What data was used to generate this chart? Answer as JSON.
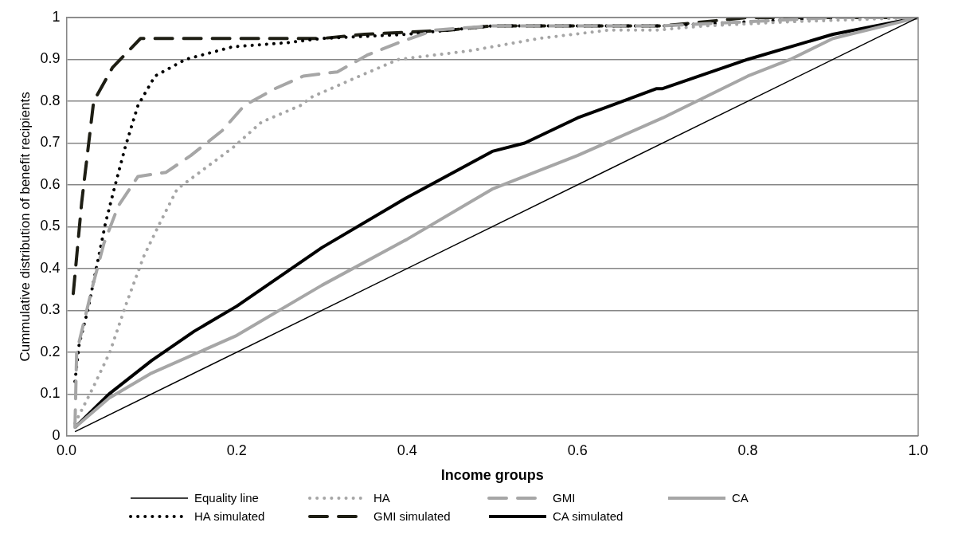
{
  "chart_data": {
    "type": "line",
    "xlabel": "Income groups",
    "ylabel": "Cummulative distribution of benefit recipients",
    "xlim": [
      0,
      1
    ],
    "ylim": [
      0,
      1
    ],
    "xticks": [
      {
        "value": 0,
        "label": "0.0"
      },
      {
        "value": 0.2,
        "label": "0.2"
      },
      {
        "value": 0.4,
        "label": "0.4"
      },
      {
        "value": 0.6,
        "label": "0.6"
      },
      {
        "value": 0.8,
        "label": "0.8"
      },
      {
        "value": 1,
        "label": "1.0"
      }
    ],
    "yticks": [
      0,
      0.1,
      0.2,
      0.3,
      0.4,
      0.5,
      0.6,
      0.7,
      0.8,
      0.9,
      1
    ],
    "grid": "y",
    "legend": "bottom",
    "marker": "none",
    "series": [
      {
        "name": "Equality line",
        "color": "#000000",
        "line_style": "solid",
        "x": [
          0.01,
          1
        ],
        "values": [
          0.01,
          1
        ]
      },
      {
        "name": "HA",
        "color": "#a6a6a6",
        "line_style": "dotted",
        "x": [
          0.01,
          0.03,
          0.051,
          0.071,
          0.091,
          0.11,
          0.13,
          0.163,
          0.196,
          0.229,
          0.275,
          0.288,
          0.344,
          0.39,
          0.472,
          0.555,
          0.637,
          0.693,
          0.75,
          0.85,
          1
        ],
        "values": [
          0.03,
          0.11,
          0.2,
          0.32,
          0.43,
          0.51,
          0.59,
          0.64,
          0.69,
          0.75,
          0.79,
          0.81,
          0.86,
          0.9,
          0.92,
          0.95,
          0.97,
          0.97,
          0.98,
          0.99,
          1
        ]
      },
      {
        "name": "GMI",
        "color": "#a6a6a6",
        "line_style": "dashed",
        "x": [
          0.01,
          0.012,
          0.031,
          0.044,
          0.061,
          0.084,
          0.117,
          0.146,
          0.183,
          0.209,
          0.245,
          0.278,
          0.318,
          0.353,
          0.39,
          0.432,
          0.5,
          0.7,
          0.8,
          0.9,
          1
        ],
        "values": [
          0.02,
          0.2,
          0.36,
          0.46,
          0.55,
          0.62,
          0.63,
          0.67,
          0.73,
          0.79,
          0.83,
          0.86,
          0.87,
          0.91,
          0.94,
          0.97,
          0.98,
          0.98,
          0.99,
          1,
          1
        ]
      },
      {
        "name": "CA",
        "color": "#a6a6a6",
        "line_style": "solid",
        "x": [
          0.01,
          0.05,
          0.1,
          0.2,
          0.3,
          0.4,
          0.5,
          0.6,
          0.7,
          0.8,
          0.85,
          0.9,
          1
        ],
        "values": [
          0.02,
          0.09,
          0.15,
          0.24,
          0.36,
          0.47,
          0.59,
          0.67,
          0.76,
          0.86,
          0.9,
          0.95,
          1
        ]
      },
      {
        "name": "HA simulated",
        "color": "#000000",
        "line_style": "dotted",
        "x": [
          0.01,
          0.015,
          0.025,
          0.035,
          0.046,
          0.056,
          0.069,
          0.084,
          0.104,
          0.14,
          0.195,
          0.26,
          0.3,
          0.4,
          0.45,
          0.5,
          0.7,
          0.8,
          0.9,
          1
        ],
        "values": [
          0.13,
          0.22,
          0.3,
          0.4,
          0.51,
          0.59,
          0.69,
          0.79,
          0.86,
          0.9,
          0.93,
          0.94,
          0.95,
          0.96,
          0.97,
          0.98,
          0.98,
          0.99,
          1,
          1
        ]
      },
      {
        "name": "GMI simulated",
        "color": "#1e1e14",
        "line_style": "dashed",
        "x": [
          0.008,
          0.018,
          0.032,
          0.054,
          0.087,
          0.3,
          0.35,
          0.45,
          0.5,
          0.7,
          0.75,
          0.8,
          1
        ],
        "values": [
          0.34,
          0.56,
          0.8,
          0.88,
          0.95,
          0.95,
          0.96,
          0.97,
          0.98,
          0.98,
          0.99,
          1,
          1
        ]
      },
      {
        "name": "CA simulated",
        "color": "#000000",
        "line_style": "solid",
        "x": [
          0.01,
          0.05,
          0.1,
          0.15,
          0.2,
          0.3,
          0.4,
          0.5,
          0.538,
          0.6,
          0.693,
          0.7,
          0.8,
          0.9,
          1
        ],
        "values": [
          0.02,
          0.1,
          0.18,
          0.25,
          0.31,
          0.45,
          0.57,
          0.68,
          0.7,
          0.76,
          0.83,
          0.83,
          0.9,
          0.96,
          1
        ]
      }
    ]
  }
}
